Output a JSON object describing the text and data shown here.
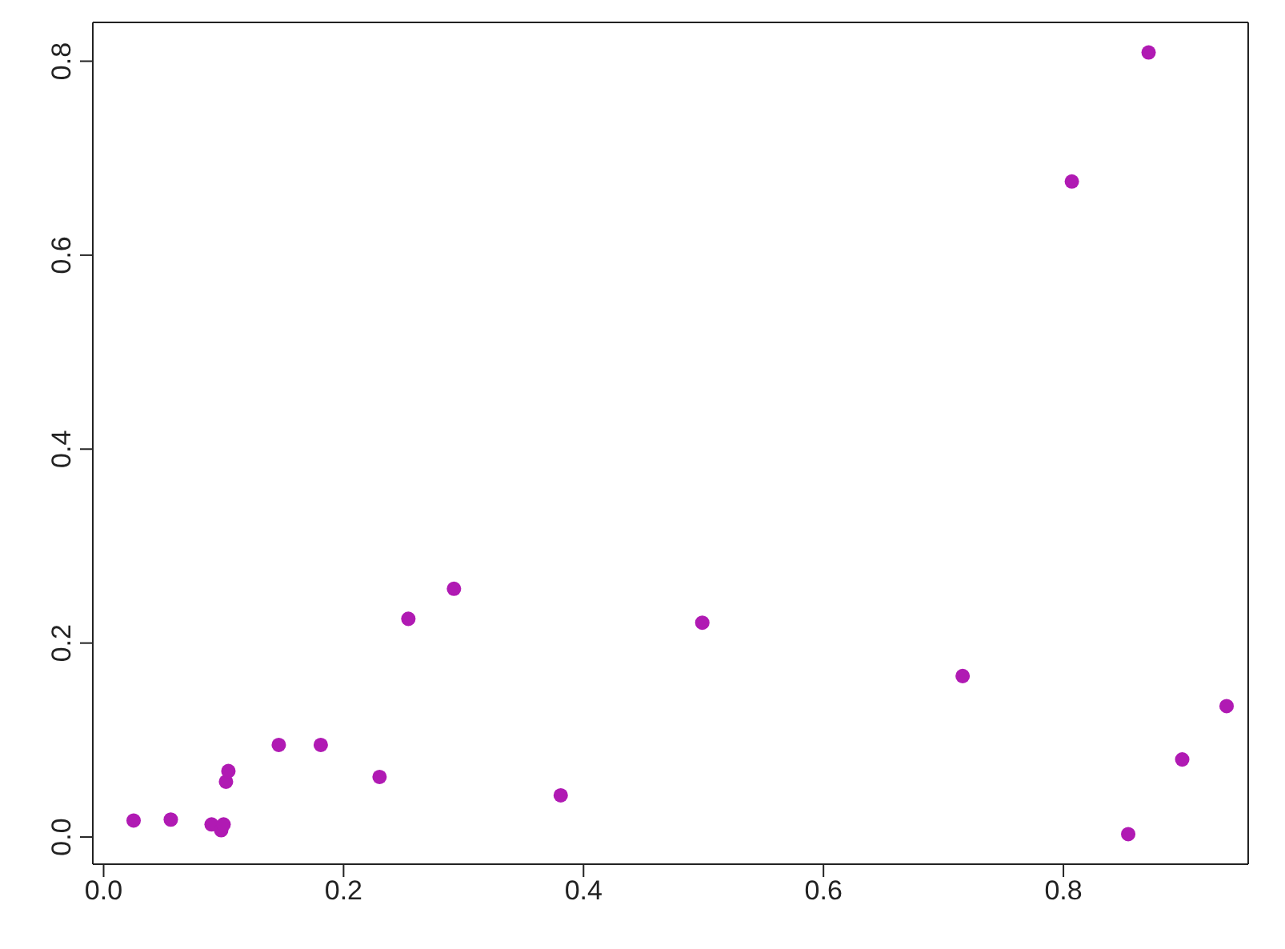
{
  "chart_data": {
    "type": "scatter",
    "marker": "circle",
    "xlim": [
      -0.009,
      0.954
    ],
    "ylim": [
      -0.028,
      0.84
    ],
    "xticks": [
      {
        "value": 0,
        "label": "0.0"
      },
      0.2,
      0.4,
      0.6,
      0.8
    ],
    "yticks": [
      {
        "value": 0,
        "label": "0.0"
      },
      0.2,
      0.4,
      0.6,
      0.8
    ],
    "series": [
      {
        "color": "#b01ab3",
        "x": [
          0.025,
          0.056,
          0.09,
          0.098,
          0.1,
          0.102,
          0.104,
          0.146,
          0.181,
          0.23,
          0.254,
          0.292,
          0.381,
          0.499,
          0.716,
          0.807,
          0.854,
          0.871,
          0.899,
          0.936
        ],
        "values": [
          0.017,
          0.018,
          0.013,
          0.007,
          0.013,
          0.057,
          0.068,
          0.095,
          0.095,
          0.062,
          0.225,
          0.256,
          0.043,
          0.221,
          0.166,
          0.676,
          0.003,
          0.809,
          0.08,
          0.135
        ]
      }
    ]
  }
}
